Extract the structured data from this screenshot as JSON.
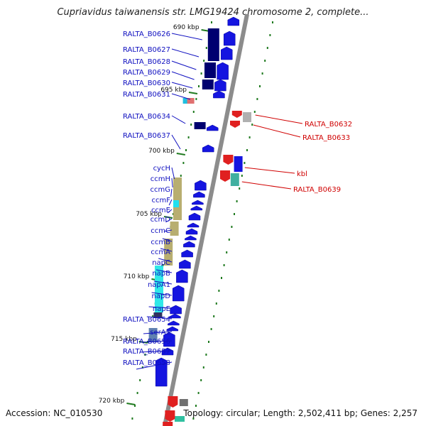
{
  "title": "Cupriavidus taiwanensis str. LMG19424 chromosome 2, complete...",
  "footer": {
    "accession": "Accession: NC_010530",
    "topology": "Topology: circular; Length: 2,502,411 bp; Genes: 2,257"
  },
  "colors": {
    "backbone": "#8c8c8c",
    "forward_label": "#1010c0",
    "reverse_label": "#d00000",
    "tick": "#1f7a1f"
  },
  "kbp_ticks": [
    "690 kbp",
    "695 kbp",
    "700 kbp",
    "705 kbp",
    "710 kbp",
    "715 kbp",
    "720 kbp"
  ],
  "forward_labels": [
    "RALTA_B0626",
    "RALTA_B0627",
    "RALTA_B0628",
    "RALTA_B0629",
    "RALTA_B0630",
    "RALTA_B0631",
    "RALTA_B0634",
    "RALTA_B0637",
    "cycH",
    "ccmH",
    "ccmG",
    "ccmF",
    "ccmE",
    "ccmD",
    "ccmC",
    "ccmB",
    "ccmA",
    "napC",
    "napB",
    "napA1",
    "napD",
    "napE",
    "RALTA_B0654",
    "serA1",
    "RALTA_B0656",
    "RALTA_B0657",
    "RALTA_B0658"
  ],
  "reverse_labels": [
    "RALTA_B0632",
    "RALTA_B0633",
    "kbl",
    "RALTA_B0639"
  ]
}
